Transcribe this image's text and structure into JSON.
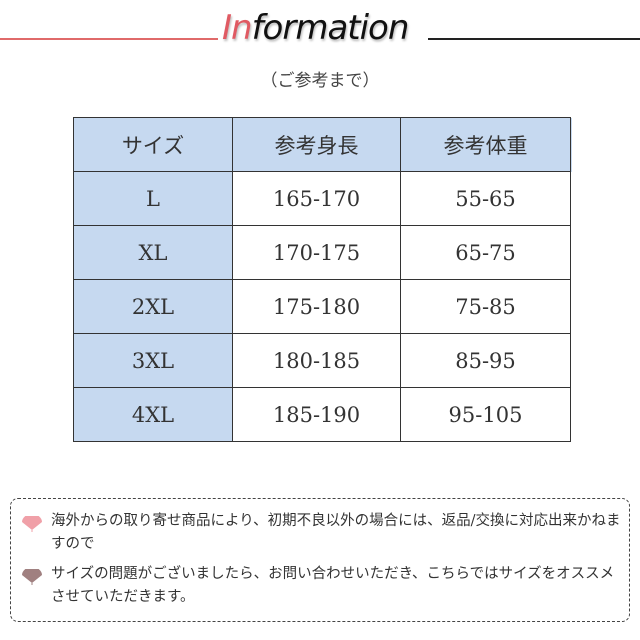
{
  "header": {
    "title_accent": "In",
    "title_rest": "formation",
    "subtitle": "（ご参考まで）"
  },
  "table": {
    "columns": [
      "サイズ",
      "参考身長",
      "参考体重"
    ],
    "rows": [
      [
        "L",
        "165-170",
        "55-65"
      ],
      [
        "XL",
        "170-175",
        "65-75"
      ],
      [
        "2XL",
        "175-180",
        "75-85"
      ],
      [
        "3XL",
        "180-185",
        "85-95"
      ],
      [
        "4XL",
        "185-190",
        "95-105"
      ]
    ]
  },
  "notes": [
    {
      "icon": "fan-icon",
      "color": "#f0a0a8",
      "text": "海外からの取り寄せ商品により、初期不良以外の場合には、返品/交換に対応出来かねますので"
    },
    {
      "icon": "fan-icon",
      "color": "#a08080",
      "text": "サイズの問題がございましたら、お問い合わせいただき、こちらではサイズをオススメさせていただきます。"
    }
  ]
}
